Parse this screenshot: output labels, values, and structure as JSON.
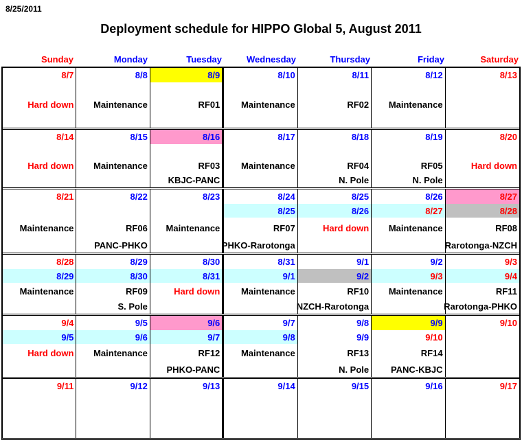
{
  "page": {
    "corner_date": "8/25/2011",
    "title": "Deployment schedule for HIPPO Global 5, August 2011"
  },
  "colors": {
    "red": "#FF0000",
    "blue": "#0000FF",
    "black": "#000000",
    "yellow": "#FFFF00",
    "pink": "#FF99CC",
    "cyan": "#CCFFFF",
    "gray": "#C0C0C0"
  },
  "day_headers": [
    {
      "label": "Sunday",
      "color": "red"
    },
    {
      "label": "Monday",
      "color": "blue"
    },
    {
      "label": "Tuesday",
      "color": "blue"
    },
    {
      "label": "Wednesday",
      "color": "blue"
    },
    {
      "label": "Thursday",
      "color": "blue"
    },
    {
      "label": "Friday",
      "color": "blue"
    },
    {
      "label": "Saturday",
      "color": "red"
    }
  ],
  "weeks": [
    {
      "height": 87,
      "cells": [
        {
          "date1": {
            "text": "8/7",
            "color": "red"
          },
          "activity": {
            "text": "Hard down",
            "color": "red"
          }
        },
        {
          "date1": {
            "text": "8/8",
            "color": "blue"
          },
          "activity": {
            "text": "Maintenance",
            "color": "black"
          }
        },
        {
          "date1": {
            "text": "8/9",
            "color": "blue",
            "bg": "yellow"
          },
          "activity": {
            "text": "RF01",
            "color": "black"
          }
        },
        {
          "date1": {
            "text": "8/10",
            "color": "blue"
          },
          "activity": {
            "text": "Maintenance",
            "color": "black"
          }
        },
        {
          "date1": {
            "text": "8/11",
            "color": "blue"
          },
          "activity": {
            "text": "RF02",
            "color": "black"
          }
        },
        {
          "date1": {
            "text": "8/12",
            "color": "blue"
          },
          "activity": {
            "text": "Maintenance",
            "color": "black"
          }
        },
        {
          "date1": {
            "text": "8/13",
            "color": "red"
          }
        }
      ]
    },
    {
      "height": 84,
      "cells": [
        {
          "date1": {
            "text": "8/14",
            "color": "red"
          },
          "activity": {
            "text": "Hard down",
            "color": "red"
          }
        },
        {
          "date1": {
            "text": "8/15",
            "color": "blue"
          },
          "activity": {
            "text": "Maintenance",
            "color": "black"
          }
        },
        {
          "date1": {
            "text": "8/16",
            "color": "blue",
            "bg": "pink"
          },
          "activity": {
            "text": "RF03",
            "color": "black"
          },
          "route": "KBJC-PANC"
        },
        {
          "date1": {
            "text": "8/17",
            "color": "blue"
          },
          "activity": {
            "text": "Maintenance",
            "color": "black"
          }
        },
        {
          "date1": {
            "text": "8/18",
            "color": "blue"
          },
          "activity": {
            "text": "RF04",
            "color": "black"
          },
          "route": "N. Pole"
        },
        {
          "date1": {
            "text": "8/19",
            "color": "blue"
          },
          "activity": {
            "text": "RF05",
            "color": "black"
          },
          "route": "N. Pole"
        },
        {
          "date1": {
            "text": "8/20",
            "color": "red"
          },
          "activity": {
            "text": "Hard down",
            "color": "red"
          }
        }
      ]
    },
    {
      "height": 92,
      "cells": [
        {
          "date1": {
            "text": "8/21",
            "color": "red"
          },
          "activity": {
            "text": "Maintenance",
            "color": "black"
          }
        },
        {
          "date1": {
            "text": "8/22",
            "color": "blue"
          },
          "activity": {
            "text": "RF06",
            "color": "black"
          },
          "route": "PANC-PHKO"
        },
        {
          "date1": {
            "text": "8/23",
            "color": "blue"
          },
          "activity": {
            "text": "Maintenance",
            "color": "black"
          }
        },
        {
          "date1": {
            "text": "8/24",
            "color": "blue"
          },
          "date2": {
            "text": "8/25",
            "color": "blue",
            "bg": "cyan"
          },
          "activity": {
            "text": "RF07",
            "color": "black"
          },
          "route": "PHKO-Rarotonga"
        },
        {
          "date1": {
            "text": "8/25",
            "color": "blue"
          },
          "date2": {
            "text": "8/26",
            "color": "blue",
            "bg": "cyan"
          },
          "activity": {
            "text": "Hard down",
            "color": "red"
          }
        },
        {
          "date1": {
            "text": "8/26",
            "color": "blue"
          },
          "date2": {
            "text": "8/27",
            "color": "red",
            "bg": "cyan"
          },
          "activity": {
            "text": "Maintenance",
            "color": "black"
          }
        },
        {
          "date1": {
            "text": "8/27",
            "color": "red",
            "bg": "pink"
          },
          "date2": {
            "text": "8/28",
            "color": "red",
            "bg": "gray"
          },
          "activity": {
            "text": "RF08",
            "color": "black"
          },
          "route": "Rarotonga-NZCH"
        }
      ]
    },
    {
      "height": 86,
      "cells": [
        {
          "date1": {
            "text": "8/28",
            "color": "red"
          },
          "date2": {
            "text": "8/29",
            "color": "blue",
            "bg": "cyan"
          },
          "activity": {
            "text": "Maintenance",
            "color": "black"
          }
        },
        {
          "date1": {
            "text": "8/29",
            "color": "blue"
          },
          "date2": {
            "text": "8/30",
            "color": "blue",
            "bg": "cyan"
          },
          "activity": {
            "text": "RF09",
            "color": "black"
          },
          "route": "S. Pole"
        },
        {
          "date1": {
            "text": "8/30",
            "color": "blue"
          },
          "date2": {
            "text": "8/31",
            "color": "blue",
            "bg": "cyan"
          },
          "activity": {
            "text": "Hard down",
            "color": "red"
          }
        },
        {
          "date1": {
            "text": "8/31",
            "color": "blue"
          },
          "date2": {
            "text": "9/1",
            "color": "blue",
            "bg": "cyan"
          },
          "activity": {
            "text": "Maintenance",
            "color": "black"
          }
        },
        {
          "date1": {
            "text": "9/1",
            "color": "blue"
          },
          "date2": {
            "text": "9/2",
            "color": "blue",
            "bg": "gray"
          },
          "activity": {
            "text": "RF10",
            "color": "black"
          },
          "route": "NZCH-Rarotonga"
        },
        {
          "date1": {
            "text": "9/2",
            "color": "blue"
          },
          "date2": {
            "text": "9/3",
            "color": "red",
            "bg": "cyan"
          },
          "activity": {
            "text": "Maintenance",
            "color": "black"
          }
        },
        {
          "date1": {
            "text": "9/3",
            "color": "red"
          },
          "date2": {
            "text": "9/4",
            "color": "red",
            "bg": "cyan"
          },
          "activity": {
            "text": "RF11",
            "color": "black"
          },
          "route": "Rarotonga-PHKO"
        }
      ]
    },
    {
      "height": 89,
      "cells": [
        {
          "date1": {
            "text": "9/4",
            "color": "red"
          },
          "date2": {
            "text": "9/5",
            "color": "blue",
            "bg": "cyan"
          },
          "activity": {
            "text": "Hard down",
            "color": "red"
          }
        },
        {
          "date1": {
            "text": "9/5",
            "color": "blue"
          },
          "date2": {
            "text": "9/6",
            "color": "blue",
            "bg": "cyan"
          },
          "activity": {
            "text": "Maintenance",
            "color": "black"
          }
        },
        {
          "date1": {
            "text": "9/6",
            "color": "blue",
            "bg": "pink"
          },
          "date2": {
            "text": "9/7",
            "color": "blue",
            "bg": "cyan"
          },
          "activity": {
            "text": "RF12",
            "color": "black"
          },
          "route": "PHKO-PANC"
        },
        {
          "date1": {
            "text": "9/7",
            "color": "blue"
          },
          "date2": {
            "text": "9/8",
            "color": "blue",
            "bg": "cyan"
          },
          "activity": {
            "text": "Maintenance",
            "color": "black"
          }
        },
        {
          "date1": {
            "text": "9/8",
            "color": "blue"
          },
          "date2": {
            "text": "9/9",
            "color": "blue"
          },
          "activity": {
            "text": "RF13",
            "color": "black"
          },
          "route": "N. Pole"
        },
        {
          "date1": {
            "text": "9/9",
            "color": "blue",
            "bg": "yellow"
          },
          "date2": {
            "text": "9/10",
            "color": "red"
          },
          "activity": {
            "text": "RF14",
            "color": "black"
          },
          "route": "PANC-KBJC"
        },
        {
          "date1": {
            "text": "9/10",
            "color": "red"
          }
        }
      ]
    },
    {
      "height": 86,
      "cells": [
        {
          "date1": {
            "text": "9/11",
            "color": "red"
          }
        },
        {
          "date1": {
            "text": "9/12",
            "color": "blue"
          }
        },
        {
          "date1": {
            "text": "9/13",
            "color": "blue"
          }
        },
        {
          "date1": {
            "text": "9/14",
            "color": "blue"
          }
        },
        {
          "date1": {
            "text": "9/15",
            "color": "blue"
          }
        },
        {
          "date1": {
            "text": "9/16",
            "color": "blue"
          }
        },
        {
          "date1": {
            "text": "9/17",
            "color": "red"
          }
        }
      ]
    }
  ]
}
